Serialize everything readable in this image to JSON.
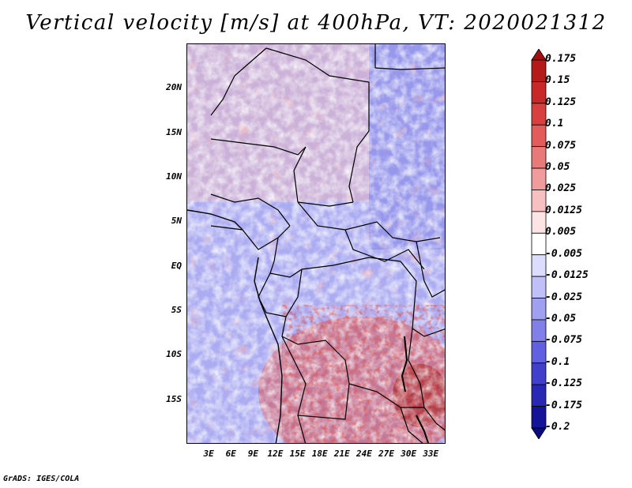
{
  "title": "Vertical velocity [m/s] at 400hPa, VT: 2020021312",
  "footer": "GrADS: IGES/COLA",
  "map": {
    "region": "Central Africa",
    "lon_range": [
      0,
      35
    ],
    "lat_range": [
      -20,
      25
    ],
    "lat_labels": [
      "20N",
      "15N",
      "10N",
      "5N",
      "EQ",
      "5S",
      "10S",
      "15S"
    ],
    "lat_values": [
      20,
      15,
      10,
      5,
      0,
      -5,
      -10,
      -15
    ],
    "lon_labels": [
      "3E",
      "6E",
      "9E",
      "12E",
      "15E",
      "18E",
      "21E",
      "24E",
      "27E",
      "30E",
      "33E"
    ],
    "lon_values": [
      3,
      6,
      9,
      12,
      15,
      18,
      21,
      24,
      27,
      30,
      33
    ]
  },
  "colorbar": {
    "labels": [
      "0.175",
      "0.15",
      "0.125",
      "0.1",
      "0.075",
      "0.05",
      "0.025",
      "0.0125",
      "0.005",
      "-0.005",
      "-0.0125",
      "-0.025",
      "-0.05",
      "-0.075",
      "-0.1",
      "-0.125",
      "-0.175",
      "-0.2"
    ],
    "colors": [
      "#a01010",
      "#b51a1a",
      "#c82828",
      "#d84040",
      "#e25c5c",
      "#e87a7a",
      "#f09c9c",
      "#f7c0c0",
      "#fde4e4",
      "#ffffff",
      "#dcdcff",
      "#c0c0f8",
      "#a0a0f0",
      "#8080e8",
      "#6060e0",
      "#4040cc",
      "#2828b4",
      "#141498",
      "#0a0a80"
    ]
  }
}
